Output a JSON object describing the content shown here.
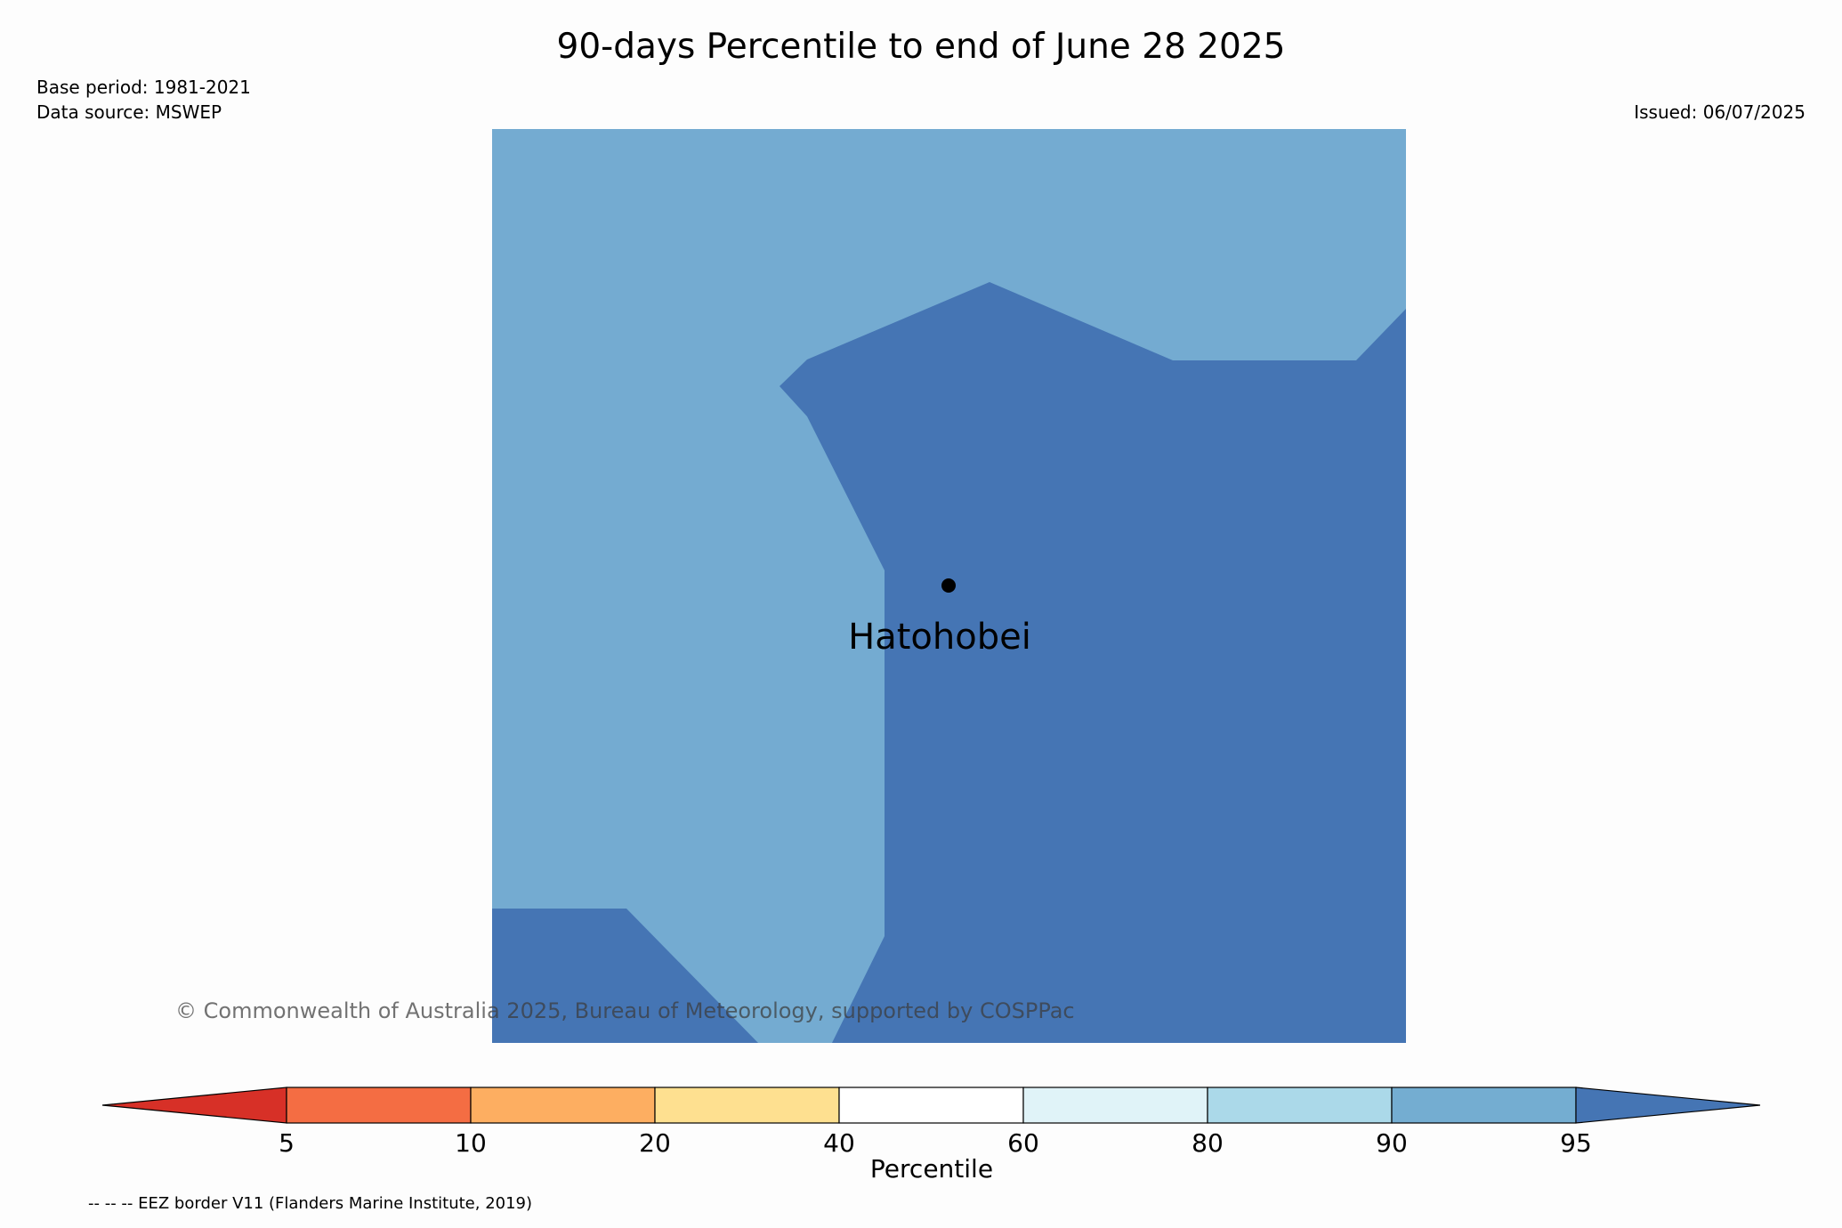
{
  "map": {
    "title": "90-days Percentile to end of June 28 2025",
    "base_period": "Base period: 1981-2021",
    "data_source": "Data source: MSWEP",
    "issued": "Issued: 06/07/2025",
    "place_name": "Hatohobei",
    "credit": "© Commonwealth of Australia 2025, Bureau of Meteorology, supported by COSPPac",
    "footnote": "-- -- -- EEZ border V11 (Flanders Marine Institute, 2019)",
    "region_colors": {
      "90_to_95": "#74abd1",
      "above_95": "#4575b4"
    }
  },
  "colorbar": {
    "label": "Percentile",
    "ticks": [
      "5",
      "10",
      "20",
      "40",
      "60",
      "80",
      "90",
      "95"
    ],
    "colors": [
      "#d73027",
      "#f46d43",
      "#fdae61",
      "#fee090",
      "#ffffff",
      "#e0f3f8",
      "#abd9e9",
      "#74add1",
      "#4575b4"
    ]
  }
}
